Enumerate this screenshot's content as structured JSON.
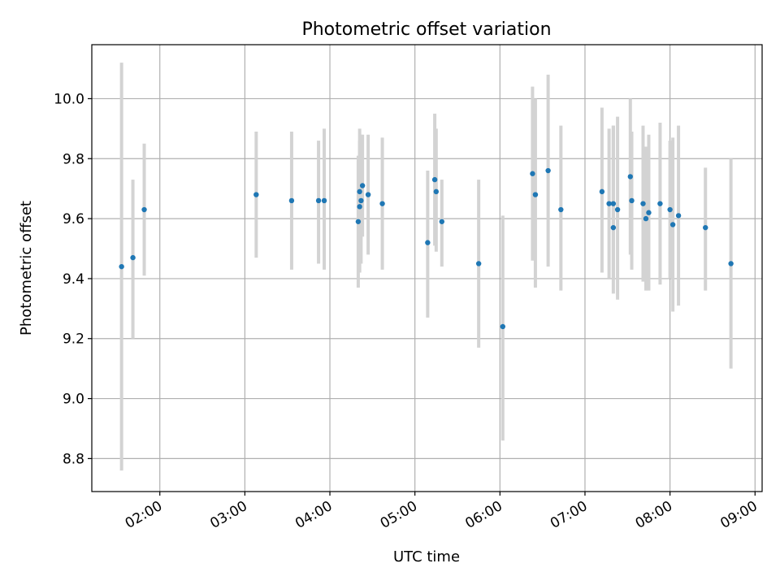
{
  "chart_data": {
    "type": "scatter",
    "title": "Photometric offset variation",
    "xlabel": "UTC time",
    "ylabel": "Photometric offset",
    "x_is_time": true,
    "xlim": [
      "01:12",
      "09:05"
    ],
    "ylim": [
      8.69,
      10.18
    ],
    "x_ticks": [
      "02:00",
      "03:00",
      "04:00",
      "05:00",
      "06:00",
      "07:00",
      "08:00",
      "09:00"
    ],
    "y_ticks": [
      "8.8",
      "9.0",
      "9.2",
      "9.4",
      "9.6",
      "9.8",
      "10.0"
    ],
    "grid": true,
    "colors": {
      "points": "#1f77b4",
      "error_bars": "#d3d3d3",
      "grid": "#b0b0b0",
      "axes": "#000000"
    },
    "points": [
      {
        "x": "01:33",
        "y": 9.44,
        "ylow": 8.76,
        "yhigh": 10.12
      },
      {
        "x": "01:41",
        "y": 9.47,
        "ylow": 9.2,
        "yhigh": 9.73
      },
      {
        "x": "01:49",
        "y": 9.63,
        "ylow": 9.41,
        "yhigh": 9.85
      },
      {
        "x": "03:08",
        "y": 9.68,
        "ylow": 9.47,
        "yhigh": 9.89
      },
      {
        "x": "03:33",
        "y": 9.66,
        "ylow": 9.43,
        "yhigh": 9.89
      },
      {
        "x": "03:52",
        "y": 9.66,
        "ylow": 9.45,
        "yhigh": 9.86
      },
      {
        "x": "03:56",
        "y": 9.66,
        "ylow": 9.43,
        "yhigh": 9.9
      },
      {
        "x": "04:20",
        "y": 9.59,
        "ylow": 9.37,
        "yhigh": 9.81
      },
      {
        "x": "04:21",
        "y": 9.64,
        "ylow": 9.42,
        "yhigh": 9.86
      },
      {
        "x": "04:21",
        "y": 9.69,
        "ylow": 9.47,
        "yhigh": 9.9
      },
      {
        "x": "04:22",
        "y": 9.66,
        "ylow": 9.45,
        "yhigh": 9.88
      },
      {
        "x": "04:23",
        "y": 9.71,
        "ylow": 9.54,
        "yhigh": 9.88
      },
      {
        "x": "04:27",
        "y": 9.68,
        "ylow": 9.48,
        "yhigh": 9.88
      },
      {
        "x": "04:37",
        "y": 9.65,
        "ylow": 9.43,
        "yhigh": 9.87
      },
      {
        "x": "05:09",
        "y": 9.52,
        "ylow": 9.27,
        "yhigh": 9.76
      },
      {
        "x": "05:14",
        "y": 9.73,
        "ylow": 9.51,
        "yhigh": 9.95
      },
      {
        "x": "05:15",
        "y": 9.69,
        "ylow": 9.49,
        "yhigh": 9.9
      },
      {
        "x": "05:19",
        "y": 9.59,
        "ylow": 9.44,
        "yhigh": 9.73
      },
      {
        "x": "05:45",
        "y": 9.45,
        "ylow": 9.17,
        "yhigh": 9.73
      },
      {
        "x": "06:02",
        "y": 9.24,
        "ylow": 8.86,
        "yhigh": 9.61
      },
      {
        "x": "06:23",
        "y": 9.75,
        "ylow": 9.46,
        "yhigh": 10.04
      },
      {
        "x": "06:25",
        "y": 9.68,
        "ylow": 9.37,
        "yhigh": 10.0
      },
      {
        "x": "06:34",
        "y": 9.76,
        "ylow": 9.44,
        "yhigh": 10.08
      },
      {
        "x": "06:43",
        "y": 9.63,
        "ylow": 9.36,
        "yhigh": 9.91
      },
      {
        "x": "07:12",
        "y": 9.69,
        "ylow": 9.42,
        "yhigh": 9.97
      },
      {
        "x": "07:17",
        "y": 9.65,
        "ylow": 9.4,
        "yhigh": 9.9
      },
      {
        "x": "07:20",
        "y": 9.57,
        "ylow": 9.35,
        "yhigh": 9.91
      },
      {
        "x": "07:20",
        "y": 9.65,
        "ylow": 9.4,
        "yhigh": 9.91
      },
      {
        "x": "07:23",
        "y": 9.63,
        "ylow": 9.33,
        "yhigh": 9.94
      },
      {
        "x": "07:32",
        "y": 9.74,
        "ylow": 9.48,
        "yhigh": 10.0
      },
      {
        "x": "07:33",
        "y": 9.66,
        "ylow": 9.43,
        "yhigh": 9.89
      },
      {
        "x": "07:41",
        "y": 9.65,
        "ylow": 9.39,
        "yhigh": 9.91
      },
      {
        "x": "07:43",
        "y": 9.6,
        "ylow": 9.36,
        "yhigh": 9.84
      },
      {
        "x": "07:45",
        "y": 9.62,
        "ylow": 9.36,
        "yhigh": 9.88
      },
      {
        "x": "07:53",
        "y": 9.65,
        "ylow": 9.38,
        "yhigh": 9.92
      },
      {
        "x": "08:00",
        "y": 9.63,
        "ylow": 9.4,
        "yhigh": 9.86
      },
      {
        "x": "08:02",
        "y": 9.58,
        "ylow": 9.29,
        "yhigh": 9.87
      },
      {
        "x": "08:06",
        "y": 9.61,
        "ylow": 9.31,
        "yhigh": 9.91
      },
      {
        "x": "08:25",
        "y": 9.57,
        "ylow": 9.36,
        "yhigh": 9.77
      },
      {
        "x": "08:43",
        "y": 9.45,
        "ylow": 9.1,
        "yhigh": 9.8
      }
    ]
  }
}
